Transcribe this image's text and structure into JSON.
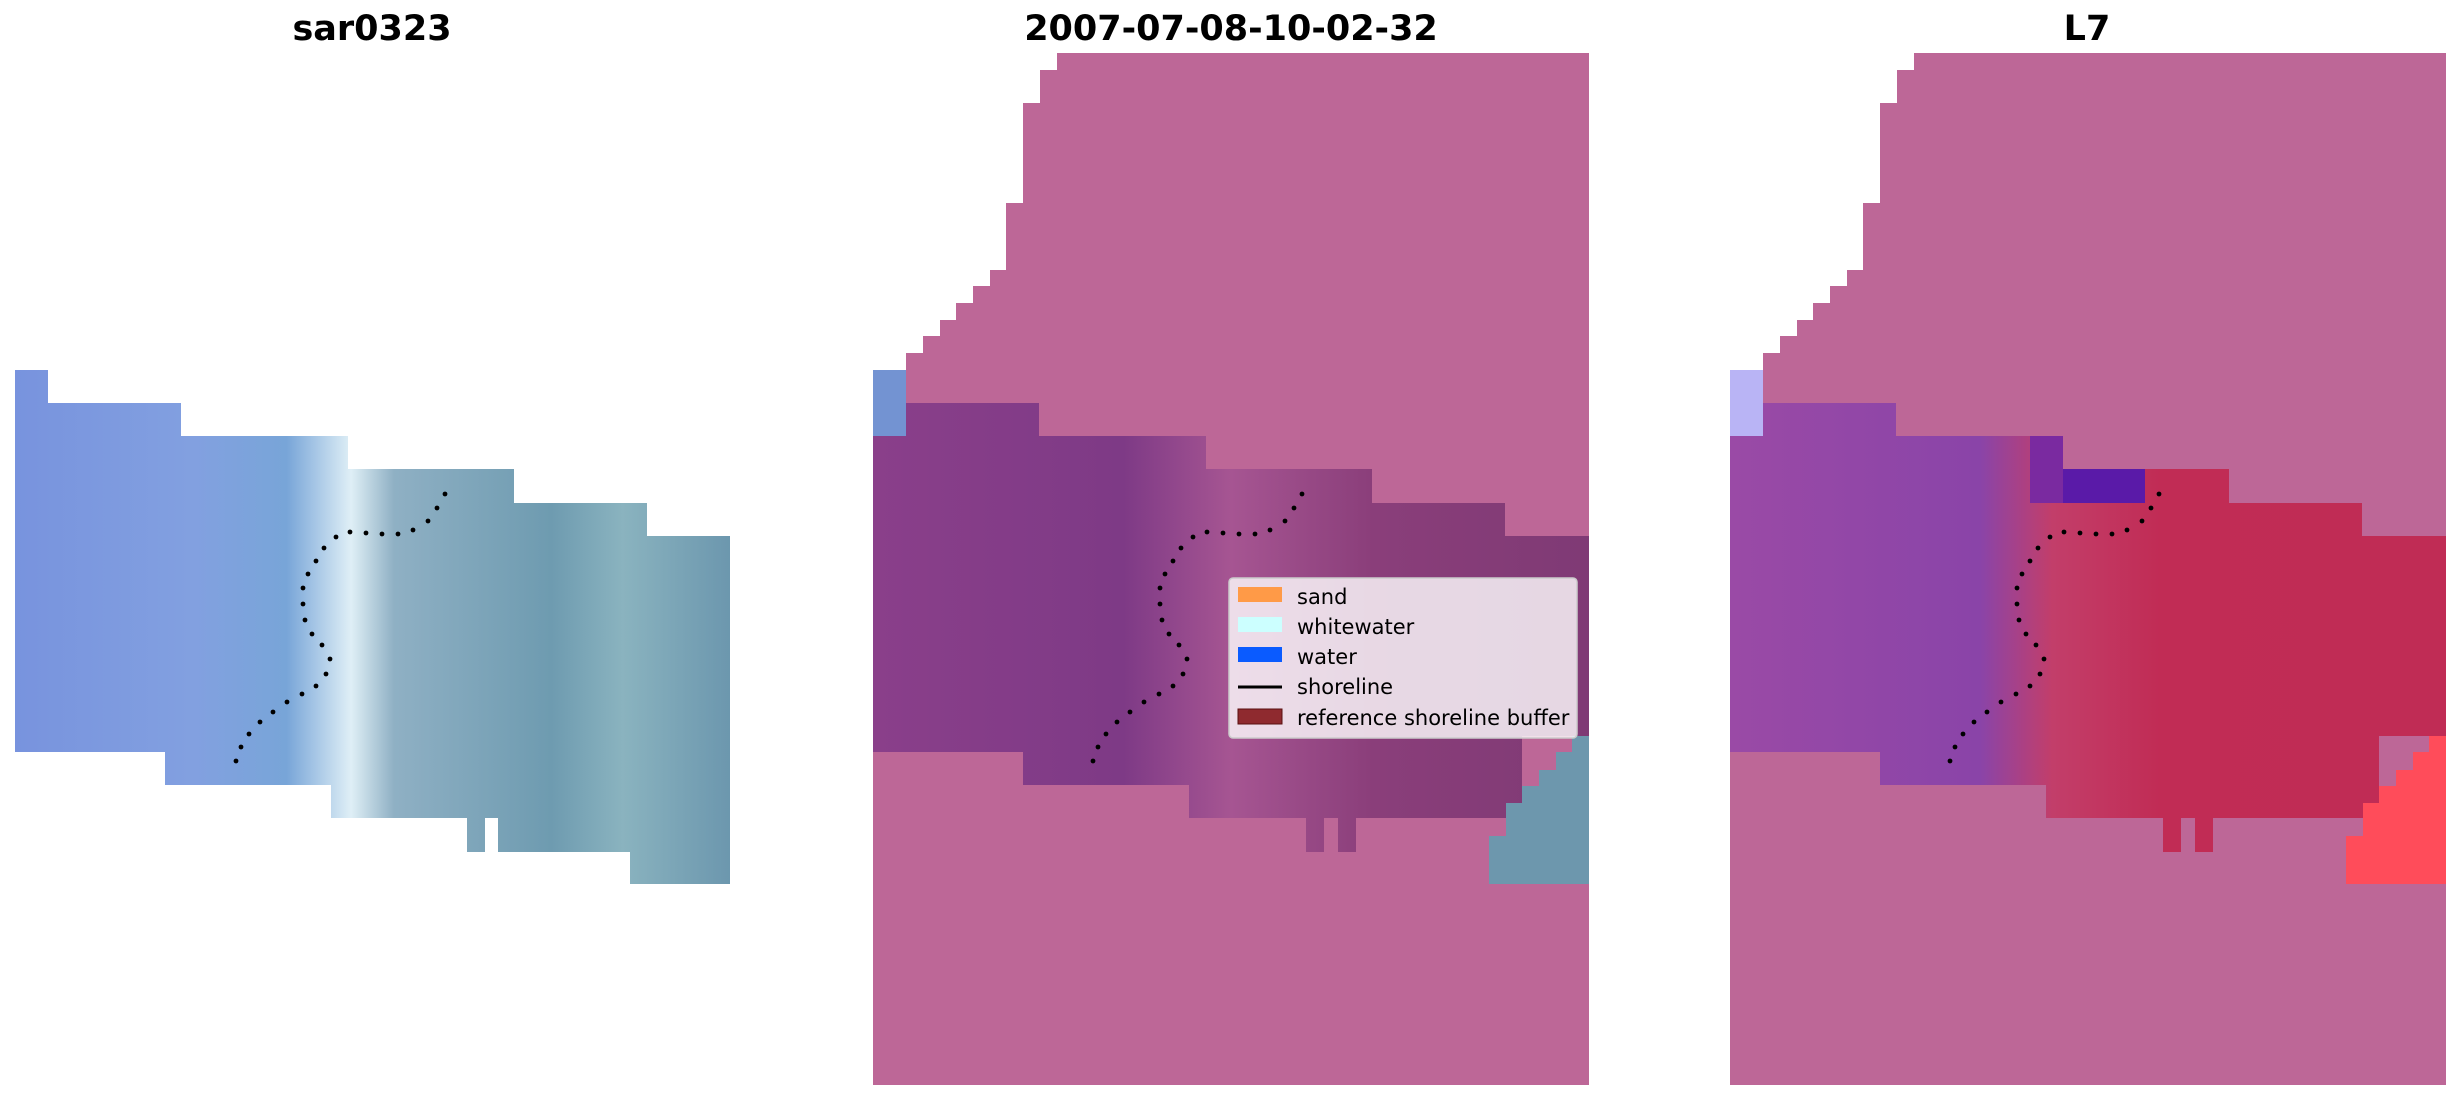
{
  "panels": [
    {
      "title": "sar0323"
    },
    {
      "title": "2007-07-08-10-02-32"
    },
    {
      "title": "L7"
    }
  ],
  "legend": {
    "items": [
      {
        "label": "sand",
        "color": "#ff9a47",
        "kind": "patch"
      },
      {
        "label": "whitewater",
        "color": "#ccffff",
        "kind": "patch"
      },
      {
        "label": "water",
        "color": "#0a5bff",
        "kind": "patch"
      },
      {
        "label": "shoreline",
        "color": "#000000",
        "kind": "line"
      },
      {
        "label": "reference shoreline buffer",
        "color": "#8f2a2f",
        "kind": "patch"
      }
    ]
  },
  "colors": {
    "mask_pink": "#bd6797",
    "classified_purple": "#833f88",
    "sar_blue": "#7b97d8",
    "sar_teal": "#6c9bb0",
    "sar_white": "#ddeef6",
    "l7_red": "#c02f55",
    "l7_violet": "#5a1aa8",
    "l7_lavender": "#b9b4f5",
    "l7_light_red": "#ff4c5a"
  }
}
